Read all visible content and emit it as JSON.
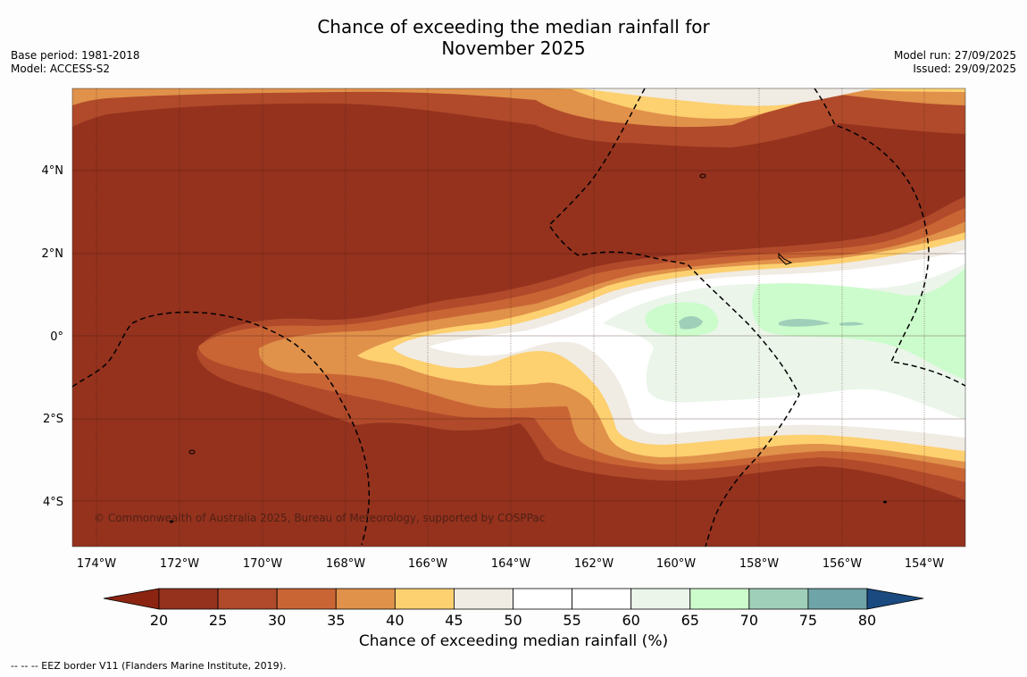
{
  "title_line1": "Chance of exceeding the median rainfall for",
  "title_line2": "November 2025",
  "base_period": "Base period: 1981-2018",
  "model": "Model: ACCESS-S2",
  "model_run": "Model run: 27/09/2025",
  "issued": "Issued: 29/09/2025",
  "copyright": "© Commonwealth of Australia 2025, Bureau of Meteorology, supported by COSPPac",
  "colorbar_label": "Chance of exceeding median rainfall (%)",
  "footnote": "-- -- -- EEZ border V11 (Flanders Marine Institute, 2019).",
  "lon_labels": [
    "174°W",
    "172°W",
    "170°W",
    "168°W",
    "166°W",
    "164°W",
    "162°W",
    "160°W",
    "158°W",
    "156°W",
    "154°W"
  ],
  "lat_labels": [
    "4°N",
    "2°N",
    "0°",
    "2°S",
    "4°S"
  ],
  "colorbar_ticks": [
    "20",
    "25",
    "30",
    "35",
    "40",
    "45",
    "50",
    "55",
    "60",
    "65",
    "70",
    "75",
    "80"
  ],
  "colors": {
    "c_lt20": "#8b2512",
    "c20": "#94321e",
    "c25": "#b04a2a",
    "c30": "#c96535",
    "c35": "#e0914a",
    "c40": "#fdd070",
    "c45": "#f0ebe3",
    "c50": "#ffffff",
    "c55": "#ffffff",
    "c60": "#ebf5ea",
    "c65": "#ccfccc",
    "c70": "#9fcfb9",
    "c75": "#6fa4a8",
    "c80": "#3f7899",
    "c_gt80": "#1a4a80"
  },
  "chart_data": {
    "type": "map",
    "variable": "Chance of exceeding median rainfall (%)",
    "lon_range": [
      -174.6,
      -153.0
    ],
    "lat_range": [
      -5.1,
      5.9
    ],
    "color_levels": [
      20,
      25,
      30,
      35,
      40,
      45,
      50,
      55,
      60,
      65,
      70,
      75,
      80
    ],
    "description_regions": [
      {
        "area": "north of 2°N",
        "value_range": "<25"
      },
      {
        "area": "equatorial band 160°W–153°W",
        "value_range": "50-70"
      },
      {
        "area": "south of 3°S",
        "value_range": "<30"
      }
    ]
  }
}
